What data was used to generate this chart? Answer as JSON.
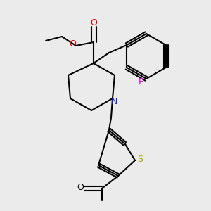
{
  "bg_color": "#ebebeb",
  "bond_color": "#000000",
  "bond_width": 1.5,
  "figsize": [
    3.0,
    3.0
  ],
  "dpi": 100,
  "xlim": [
    0,
    300
  ],
  "ylim": [
    0,
    300
  ]
}
